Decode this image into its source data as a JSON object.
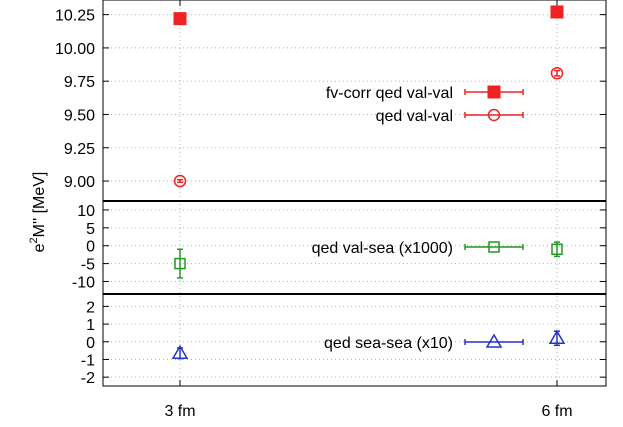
{
  "chart_data": {
    "type": "scatter",
    "ylabel": "e²M'' [MeV]",
    "ylabel_base": "e",
    "ylabel_sup": "2",
    "ylabel_rest": "M'' [MeV]",
    "categories": [
      "3 fm",
      "6 fm"
    ],
    "grid": true,
    "legend_position": "inside-right",
    "panels": [
      {
        "ylim": [
          8.85,
          10.36
        ],
        "yticks": [
          9.0,
          9.25,
          9.5,
          9.75,
          10.0,
          10.25
        ],
        "ytick_labels": [
          "9.00",
          "9.25",
          "9.50",
          "9.75",
          "10.00",
          "10.25"
        ],
        "series": [
          {
            "name": "fv-corr qed val-val",
            "marker": "filled-square",
            "color": "#ee2222",
            "values": [
              10.22,
              10.27
            ],
            "errors": [
              0.03,
              0.01
            ]
          },
          {
            "name": "qed val-val",
            "marker": "open-circle",
            "color": "#ee2222",
            "values": [
              9.0,
              9.81
            ],
            "errors": [
              0.01,
              0.02
            ]
          }
        ]
      },
      {
        "ylim": [
          -13.5,
          12.5
        ],
        "yticks": [
          -10,
          -5,
          0,
          5,
          10
        ],
        "ytick_labels": [
          "-10",
          "-5",
          "0",
          "5",
          "10"
        ],
        "series": [
          {
            "name": "qed val-sea (x1000)",
            "marker": "open-square",
            "color": "#229922",
            "values": [
              -5.0,
              -1.0
            ],
            "errors": [
              4.0,
              2.0
            ]
          }
        ]
      },
      {
        "ylim": [
          -2.5,
          2.7
        ],
        "yticks": [
          -2,
          -1,
          0,
          1,
          2
        ],
        "ytick_labels": [
          "-2",
          "-1",
          "0",
          "1",
          "2"
        ],
        "series": [
          {
            "name": "qed sea-sea (x10)",
            "marker": "open-triangle",
            "color": "#2233cc",
            "values": [
              -0.65,
              0.2
            ],
            "errors": [
              0.3,
              0.4
            ]
          }
        ]
      }
    ]
  }
}
